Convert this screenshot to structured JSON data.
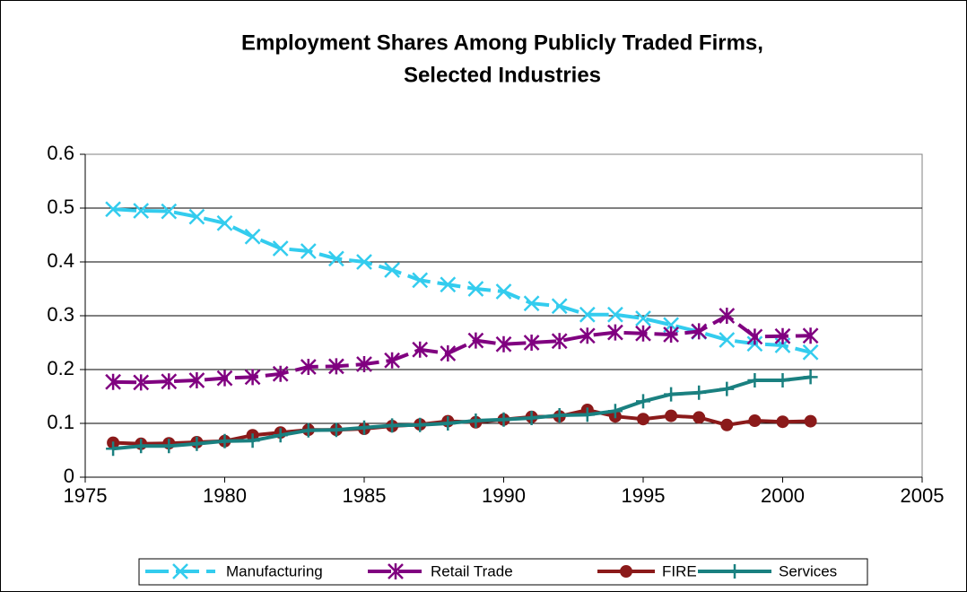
{
  "chart_data": {
    "type": "line",
    "title": [
      "Employment Shares Among Publicly Traded Firms,",
      "Selected Industries"
    ],
    "x": [
      1976,
      1977,
      1978,
      1979,
      1980,
      1981,
      1982,
      1983,
      1984,
      1985,
      1986,
      1987,
      1988,
      1989,
      1990,
      1991,
      1992,
      1993,
      1994,
      1995,
      1996,
      1997,
      1998,
      1999,
      2000,
      2001
    ],
    "series": [
      {
        "name": "Manufacturing",
        "color": "#33ccee",
        "marker": "x",
        "dashed": true,
        "values": [
          0.498,
          0.495,
          0.494,
          0.484,
          0.472,
          0.447,
          0.425,
          0.42,
          0.406,
          0.4,
          0.385,
          0.366,
          0.358,
          0.35,
          0.345,
          0.323,
          0.318,
          0.302,
          0.302,
          0.295,
          0.283,
          0.27,
          0.255,
          0.248,
          0.245,
          0.232
        ]
      },
      {
        "name": "Retail Trade",
        "color": "#800080",
        "marker": "asterisk",
        "dashed": true,
        "values": [
          0.177,
          0.176,
          0.178,
          0.18,
          0.184,
          0.186,
          0.192,
          0.205,
          0.206,
          0.21,
          0.217,
          0.237,
          0.23,
          0.254,
          0.247,
          0.25,
          0.253,
          0.263,
          0.269,
          0.267,
          0.265,
          0.271,
          0.3,
          0.261,
          0.262,
          0.263
        ]
      },
      {
        "name": "FIRE",
        "color": "#8b1a1a",
        "marker": "circle",
        "dashed": false,
        "values": [
          0.064,
          0.062,
          0.063,
          0.065,
          0.067,
          0.078,
          0.083,
          0.088,
          0.088,
          0.09,
          0.095,
          0.098,
          0.104,
          0.102,
          0.107,
          0.112,
          0.113,
          0.125,
          0.113,
          0.108,
          0.114,
          0.111,
          0.097,
          0.105,
          0.103,
          0.104
        ]
      },
      {
        "name": "Services",
        "color": "#1a8080",
        "marker": "plus",
        "dashed": false,
        "values": [
          0.053,
          0.058,
          0.058,
          0.062,
          0.067,
          0.068,
          0.078,
          0.087,
          0.088,
          0.092,
          0.096,
          0.097,
          0.1,
          0.105,
          0.107,
          0.11,
          0.115,
          0.116,
          0.123,
          0.141,
          0.154,
          0.157,
          0.164,
          0.18,
          0.18,
          0.186
        ]
      }
    ],
    "xlim": [
      1975,
      2005
    ],
    "xticks": [
      1975,
      1980,
      1985,
      1990,
      1995,
      2000,
      2005
    ],
    "ylim": [
      0,
      0.6
    ],
    "yticks": [
      0,
      0.1,
      0.2,
      0.3,
      0.4,
      0.5,
      0.6
    ],
    "grid": true,
    "legend": "bottom"
  }
}
